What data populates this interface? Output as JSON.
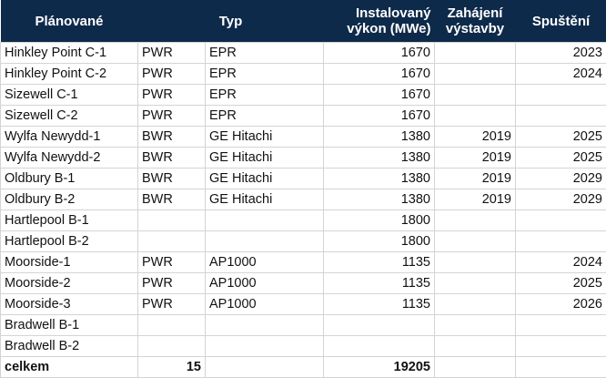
{
  "header": {
    "col1": "Plánované",
    "col2": "Typ",
    "col4_line1": "Instalovaný",
    "col4_line2": "výkon (MWe)",
    "col5_line1": "Zahájení",
    "col5_line2": "výstavby",
    "col6": "Spuštění"
  },
  "rows": [
    {
      "name": "Hinkley Point C-1",
      "type": "PWR",
      "model": "EPR",
      "power": "1670",
      "start": "",
      "launch": "2023"
    },
    {
      "name": "Hinkley Point C-2",
      "type": "PWR",
      "model": "EPR",
      "power": "1670",
      "start": "",
      "launch": "2024"
    },
    {
      "name": "Sizewell C-1",
      "type": "PWR",
      "model": "EPR",
      "power": "1670",
      "start": "",
      "launch": ""
    },
    {
      "name": "Sizewell C-2",
      "type": "PWR",
      "model": "EPR",
      "power": "1670",
      "start": "",
      "launch": ""
    },
    {
      "name": "Wylfa Newydd-1",
      "type": "BWR",
      "model": "GE Hitachi",
      "power": "1380",
      "start": "2019",
      "launch": "2025"
    },
    {
      "name": "Wylfa Newydd-2",
      "type": "BWR",
      "model": "GE Hitachi",
      "power": "1380",
      "start": "2019",
      "launch": "2025"
    },
    {
      "name": "Oldbury B-1",
      "type": "BWR",
      "model": "GE Hitachi",
      "power": "1380",
      "start": "2019",
      "launch": "2029"
    },
    {
      "name": "Oldbury B-2",
      "type": "BWR",
      "model": "GE Hitachi",
      "power": "1380",
      "start": "2019",
      "launch": "2029"
    },
    {
      "name": "Hartlepool B-1",
      "type": "",
      "model": "",
      "power": "1800",
      "start": "",
      "launch": ""
    },
    {
      "name": "Hartlepool B-2",
      "type": "",
      "model": "",
      "power": "1800",
      "start": "",
      "launch": ""
    },
    {
      "name": "Moorside-1",
      "type": "PWR",
      "model": "AP1000",
      "power": "1135",
      "start": "",
      "launch": "2024"
    },
    {
      "name": "Moorside-2",
      "type": "PWR",
      "model": "AP1000",
      "power": "1135",
      "start": "",
      "launch": "2025"
    },
    {
      "name": "Moorside-3",
      "type": "PWR",
      "model": "AP1000",
      "power": "1135",
      "start": "",
      "launch": "2026"
    },
    {
      "name": "Bradwell B-1",
      "type": "",
      "model": "",
      "power": "",
      "start": "",
      "launch": ""
    },
    {
      "name": "Bradwell B-2",
      "type": "",
      "model": "",
      "power": "",
      "start": "",
      "launch": ""
    }
  ],
  "total": {
    "label": "celkem",
    "count": "15",
    "power": "19205"
  },
  "colors": {
    "header_bg": "#0e2a4a",
    "header_text": "#ffffff",
    "grid": "#d4d4d4"
  }
}
